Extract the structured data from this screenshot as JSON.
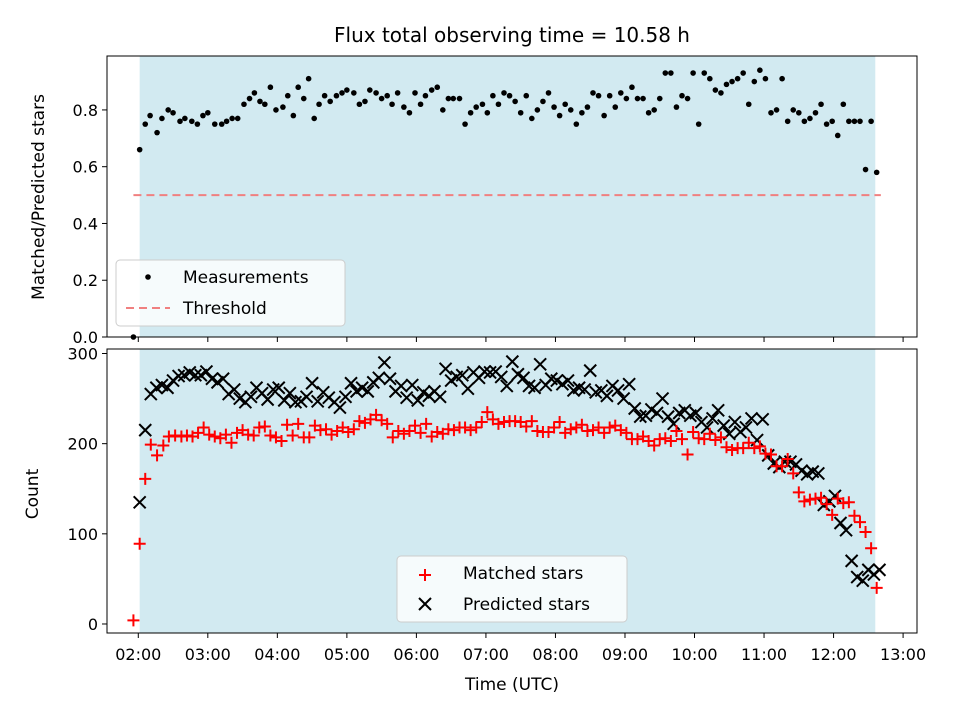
{
  "chart_data": [
    {
      "type": "scatter",
      "title": "Flux total observing time = 10.58 h",
      "ylabel": "Matched/Predicted stars",
      "xlabel": "",
      "xlim": [
        1.55,
        13.2
      ],
      "ylim": [
        0.0,
        0.99
      ],
      "yticks": [
        0.0,
        0.2,
        0.4,
        0.6,
        0.8
      ],
      "ytick_labels": [
        "0.0",
        "0.2",
        "0.4",
        "0.6",
        "0.8"
      ],
      "shaded_span": [
        2.02,
        12.6
      ],
      "threshold": 0.5,
      "legend": {
        "position": "lower-left",
        "entries": [
          "Measurements",
          "Threshold"
        ]
      },
      "colors": {
        "points": "#000000",
        "threshold": "#f08080",
        "span": "#add8e6"
      },
      "series": [
        {
          "name": "Measurements",
          "x": [
            1.93,
            2.02,
            2.1,
            2.17,
            2.27,
            2.34,
            2.43,
            2.5,
            2.6,
            2.67,
            2.77,
            2.85,
            2.93,
            3.0,
            3.1,
            3.2,
            3.27,
            3.35,
            3.43,
            3.52,
            3.6,
            3.67,
            3.75,
            3.82,
            3.9,
            3.98,
            4.08,
            4.15,
            4.23,
            4.3,
            4.38,
            4.45,
            4.53,
            4.6,
            4.68,
            4.76,
            4.85,
            4.93,
            5.0,
            5.1,
            5.18,
            5.26,
            5.33,
            5.42,
            5.5,
            5.58,
            5.65,
            5.73,
            5.82,
            5.9,
            5.98,
            6.06,
            6.13,
            6.22,
            6.3,
            6.38,
            6.46,
            6.53,
            6.62,
            6.7,
            6.78,
            6.86,
            6.95,
            7.02,
            7.1,
            7.18,
            7.26,
            7.34,
            7.42,
            7.5,
            7.58,
            7.66,
            7.74,
            7.82,
            7.9,
            7.98,
            8.06,
            8.14,
            8.22,
            8.3,
            8.38,
            8.46,
            8.54,
            8.62,
            8.7,
            8.78,
            8.86,
            8.94,
            9.02,
            9.1,
            9.18,
            9.26,
            9.34,
            9.42,
            9.5,
            9.58,
            9.66,
            9.74,
            9.82,
            9.9,
            9.98,
            10.06,
            10.14,
            10.22,
            10.3,
            10.38,
            10.46,
            10.54,
            10.62,
            10.7,
            10.78,
            10.86,
            10.94,
            11.02,
            11.1,
            11.18,
            11.26,
            11.34,
            11.42,
            11.5,
            11.58,
            11.66,
            11.74,
            11.82,
            11.9,
            11.98,
            12.06,
            12.14,
            12.22,
            12.3,
            12.38,
            12.46,
            12.54,
            12.62
          ],
          "y": [
            0.0,
            0.66,
            0.75,
            0.78,
            0.72,
            0.77,
            0.8,
            0.79,
            0.76,
            0.77,
            0.76,
            0.75,
            0.78,
            0.79,
            0.75,
            0.75,
            0.76,
            0.77,
            0.77,
            0.82,
            0.84,
            0.86,
            0.83,
            0.82,
            0.88,
            0.8,
            0.81,
            0.85,
            0.78,
            0.88,
            0.84,
            0.91,
            0.77,
            0.82,
            0.85,
            0.83,
            0.85,
            0.86,
            0.87,
            0.86,
            0.82,
            0.83,
            0.87,
            0.86,
            0.84,
            0.85,
            0.82,
            0.86,
            0.81,
            0.79,
            0.86,
            0.82,
            0.85,
            0.87,
            0.88,
            0.8,
            0.84,
            0.84,
            0.84,
            0.75,
            0.79,
            0.81,
            0.82,
            0.79,
            0.85,
            0.82,
            0.86,
            0.85,
            0.83,
            0.79,
            0.85,
            0.77,
            0.8,
            0.83,
            0.86,
            0.81,
            0.78,
            0.82,
            0.8,
            0.75,
            0.79,
            0.81,
            0.86,
            0.85,
            0.78,
            0.85,
            0.81,
            0.86,
            0.84,
            0.88,
            0.84,
            0.84,
            0.79,
            0.8,
            0.84,
            0.93,
            0.93,
            0.81,
            0.85,
            0.84,
            0.93,
            0.75,
            0.93,
            0.91,
            0.87,
            0.86,
            0.89,
            0.9,
            0.91,
            0.93,
            0.82,
            0.9,
            0.94,
            0.91,
            0.79,
            0.8,
            0.91,
            0.76,
            0.8,
            0.79,
            0.76,
            0.77,
            0.79,
            0.82,
            0.75,
            0.76,
            0.71,
            0.82,
            0.76,
            0.76,
            0.76,
            0.59,
            0.76,
            0.58
          ]
        }
      ]
    },
    {
      "type": "scatter",
      "title": "",
      "xlabel": "Time (UTC)",
      "ylabel": "Count",
      "xlim": [
        1.55,
        13.2
      ],
      "ylim": [
        -10,
        305
      ],
      "xticks": [
        2,
        3,
        4,
        5,
        6,
        7,
        8,
        9,
        10,
        11,
        12,
        13
      ],
      "xtick_labels": [
        "02:00",
        "03:00",
        "04:00",
        "05:00",
        "06:00",
        "07:00",
        "08:00",
        "09:00",
        "10:00",
        "11:00",
        "12:00",
        "13:00"
      ],
      "yticks": [
        0,
        100,
        200,
        300
      ],
      "ytick_labels": [
        "0",
        "100",
        "200",
        "300"
      ],
      "shaded_span": [
        2.02,
        12.6
      ],
      "legend": {
        "position": "lower-center",
        "entries": [
          "Matched stars",
          "Predicted stars"
        ]
      },
      "colors": {
        "matched": "#ff0000",
        "predicted": "#000000",
        "span": "#add8e6"
      },
      "series": [
        {
          "name": "Matched stars",
          "marker": "plus",
          "x": [
            1.93,
            2.02,
            2.1,
            2.18,
            2.27,
            2.36,
            2.44,
            2.53,
            2.62,
            2.7,
            2.78,
            2.86,
            2.94,
            3.02,
            3.1,
            3.18,
            3.26,
            3.34,
            3.42,
            3.5,
            3.58,
            3.66,
            3.74,
            3.82,
            3.9,
            3.98,
            4.06,
            4.14,
            4.22,
            4.3,
            4.38,
            4.46,
            4.54,
            4.62,
            4.7,
            4.78,
            4.86,
            4.94,
            5.02,
            5.1,
            5.18,
            5.26,
            5.34,
            5.42,
            5.5,
            5.58,
            5.66,
            5.74,
            5.82,
            5.9,
            5.98,
            6.06,
            6.14,
            6.22,
            6.3,
            6.38,
            6.46,
            6.54,
            6.62,
            6.7,
            6.78,
            6.86,
            6.94,
            7.02,
            7.1,
            7.18,
            7.26,
            7.34,
            7.42,
            7.5,
            7.58,
            7.66,
            7.74,
            7.82,
            7.9,
            7.98,
            8.06,
            8.14,
            8.22,
            8.3,
            8.38,
            8.46,
            8.54,
            8.62,
            8.7,
            8.78,
            8.86,
            8.94,
            9.02,
            9.1,
            9.18,
            9.26,
            9.34,
            9.42,
            9.5,
            9.58,
            9.66,
            9.74,
            9.82,
            9.9,
            9.98,
            10.06,
            10.14,
            10.22,
            10.3,
            10.38,
            10.46,
            10.54,
            10.62,
            10.7,
            10.78,
            10.86,
            10.94,
            11.02,
            11.1,
            11.18,
            11.26,
            11.34,
            11.42,
            11.5,
            11.58,
            11.66,
            11.74,
            11.82,
            11.9,
            11.98,
            12.06,
            12.14,
            12.22,
            12.3,
            12.38,
            12.46,
            12.54,
            12.62
          ],
          "y": [
            4,
            89,
            161,
            199,
            187,
            198,
            208,
            209,
            208,
            209,
            208,
            212,
            218,
            210,
            208,
            206,
            210,
            201,
            212,
            215,
            210,
            209,
            218,
            219,
            209,
            207,
            203,
            221,
            209,
            222,
            207,
            207,
            220,
            215,
            216,
            210,
            214,
            218,
            213,
            216,
            225,
            223,
            227,
            232,
            226,
            222,
            207,
            214,
            211,
            214,
            220,
            212,
            222,
            208,
            213,
            211,
            216,
            215,
            218,
            218,
            215,
            218,
            224,
            235,
            227,
            222,
            224,
            225,
            225,
            224,
            219,
            225,
            214,
            213,
            213,
            218,
            224,
            212,
            216,
            218,
            221,
            214,
            215,
            218,
            212,
            218,
            220,
            215,
            212,
            205,
            205,
            208,
            203,
            198,
            205,
            206,
            203,
            214,
            205,
            188,
            213,
            206,
            205,
            211,
            204,
            207,
            196,
            193,
            195,
            195,
            201,
            195,
            197,
            189,
            188,
            175,
            175,
            183,
            167,
            146,
            136,
            138,
            139,
            140,
            133,
            121,
            139,
            134,
            135,
            120,
            113,
            102,
            84,
            40
          ]
        },
        {
          "name": "Predicted stars",
          "marker": "x",
          "x": [
            2.02,
            2.1,
            2.18,
            2.26,
            2.34,
            2.42,
            2.5,
            2.58,
            2.66,
            2.74,
            2.82,
            2.9,
            2.98,
            3.06,
            3.14,
            3.22,
            3.3,
            3.38,
            3.46,
            3.54,
            3.62,
            3.7,
            3.78,
            3.86,
            3.94,
            4.02,
            4.1,
            4.18,
            4.26,
            4.34,
            4.42,
            4.5,
            4.58,
            4.66,
            4.74,
            4.82,
            4.9,
            4.98,
            5.06,
            5.14,
            5.22,
            5.3,
            5.38,
            5.46,
            5.54,
            5.62,
            5.7,
            5.78,
            5.86,
            5.94,
            6.02,
            6.1,
            6.18,
            6.26,
            6.34,
            6.42,
            6.5,
            6.58,
            6.66,
            6.74,
            6.82,
            6.9,
            6.98,
            7.06,
            7.14,
            7.22,
            7.3,
            7.38,
            7.46,
            7.54,
            7.62,
            7.7,
            7.78,
            7.86,
            7.94,
            8.02,
            8.1,
            8.18,
            8.26,
            8.34,
            8.42,
            8.5,
            8.58,
            8.66,
            8.74,
            8.82,
            8.9,
            8.98,
            9.06,
            9.14,
            9.22,
            9.3,
            9.38,
            9.46,
            9.54,
            9.62,
            9.7,
            9.78,
            9.86,
            9.94,
            10.02,
            10.1,
            10.18,
            10.26,
            10.34,
            10.42,
            10.5,
            10.58,
            10.66,
            10.74,
            10.82,
            10.9,
            10.98,
            11.06,
            11.14,
            11.22,
            11.3,
            11.38,
            11.46,
            11.54,
            11.62,
            11.7,
            11.78,
            11.86,
            11.94,
            12.02,
            12.1,
            12.18,
            12.26,
            12.34,
            12.42,
            12.5,
            12.58,
            12.66
          ],
          "y": [
            135,
            215,
            255,
            262,
            265,
            262,
            270,
            275,
            276,
            279,
            276,
            276,
            280,
            272,
            268,
            272,
            255,
            260,
            250,
            246,
            252,
            262,
            256,
            249,
            260,
            262,
            248,
            256,
            246,
            247,
            252,
            267,
            247,
            257,
            251,
            246,
            240,
            252,
            267,
            258,
            262,
            258,
            268,
            273,
            290,
            272,
            258,
            264,
            251,
            265,
            248,
            257,
            253,
            258,
            252,
            283,
            270,
            274,
            276,
            261,
            279,
            273,
            280,
            279,
            280,
            274,
            264,
            291,
            277,
            273,
            264,
            262,
            288,
            265,
            272,
            270,
            266,
            270,
            259,
            262,
            260,
            281,
            257,
            259,
            253,
            264,
            259,
            250,
            266,
            239,
            230,
            231,
            238,
            234,
            250,
            230,
            222,
            234,
            237,
            231,
            234,
            224,
            218,
            228,
            237,
            220,
            211,
            224,
            213,
            218,
            228,
            204,
            227,
            187,
            178,
            174,
            180,
            180,
            177,
            170,
            166,
            169,
            167,
            132,
            136,
            142,
            112,
            104,
            70,
            52,
            48,
            60,
            55,
            60
          ]
        }
      ]
    }
  ]
}
